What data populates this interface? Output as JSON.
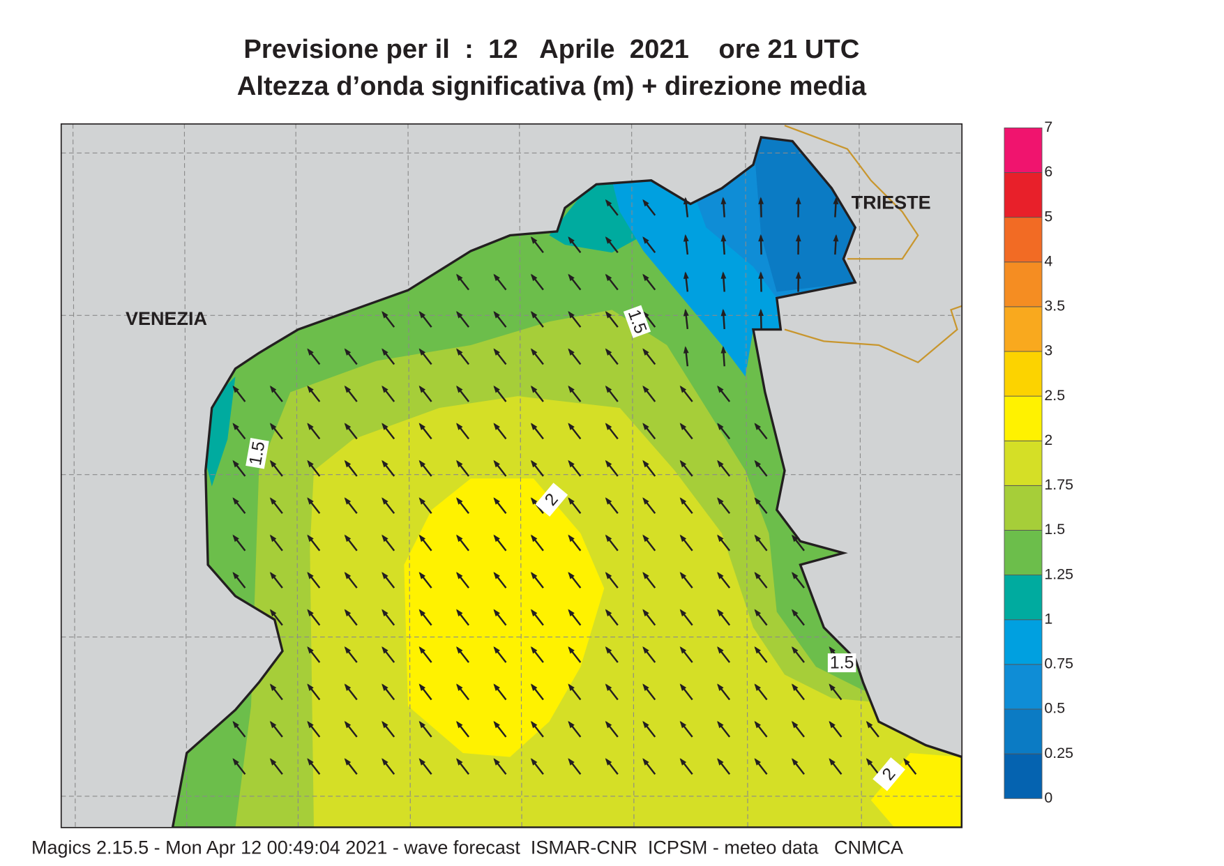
{
  "header": {
    "title": "Previsione per il  :  12   Aprile  2021    ore 21 UTC",
    "subtitle": "Altezza d’onda significativa (m) + direzione media"
  },
  "map": {
    "places": [
      "VENEZIA",
      "TRIESTE"
    ],
    "contour_labels": [
      1.5,
      1.5,
      2,
      1.5,
      2
    ]
  },
  "legend": {
    "levels": [
      0,
      0.25,
      0.5,
      0.75,
      1,
      1.25,
      1.5,
      1.75,
      2,
      2.5,
      3,
      3.5,
      4,
      5,
      6,
      7
    ],
    "colors": [
      "#0563b0",
      "#0b7bc4",
      "#0f8dd6",
      "#00a0e0",
      "#00ab9f",
      "#6cbe4b",
      "#a6ce39",
      "#d5df26",
      "#fff200",
      "#fcd300",
      "#f9a91e",
      "#f58d22",
      "#f26b24",
      "#e8202a",
      "#f0146e"
    ]
  },
  "footer": "Magics 2.15.5 - Mon Apr 12 00:49:04 2021 - wave forecast  ISMAR-CNR  ICPSM - meteo data   CNMCA"
}
